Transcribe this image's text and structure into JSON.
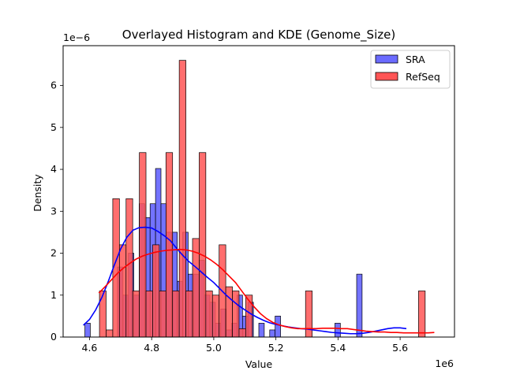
{
  "chart_data": {
    "type": "histogram",
    "title": "Overlayed Histogram and KDE (Genome_Size)",
    "xlabel": "Value",
    "ylabel": "Density",
    "x_exponent_label": "1e6",
    "y_exponent_label": "1e−6",
    "x_scale": 1000000,
    "y_scale": 1e-06,
    "xlim": [
      4.515,
      5.775
    ],
    "ylim": [
      0,
      6.95
    ],
    "x_ticks": [
      4.6,
      4.8,
      5.0,
      5.2,
      5.4,
      5.6
    ],
    "x_tick_labels": [
      "4.6",
      "4.8",
      "5.0",
      "5.2",
      "5.4",
      "5.6"
    ],
    "y_ticks": [
      0,
      1,
      2,
      3,
      4,
      5,
      6
    ],
    "y_tick_labels": [
      "0",
      "1",
      "2",
      "3",
      "4",
      "5",
      "6"
    ],
    "legend_position": "top-right",
    "grid": false,
    "series": [
      {
        "name": "SRA",
        "color": "#0000ff",
        "bar_fill": "#6b6bff",
        "bin_start": 4.585,
        "bin_width": 0.0175,
        "values": [
          0.33,
          0,
          0,
          0,
          0,
          0,
          1.67,
          1.0,
          2.0,
          1.0,
          3.18,
          2.85,
          3.18,
          4.02,
          3.18,
          2.5,
          2.5,
          1.33,
          2.5,
          1.5,
          1.5,
          1.83,
          1.0,
          0.83,
          0.33,
          0.67,
          0.17,
          0.33,
          1.0,
          0.5,
          0.83,
          0,
          0.33,
          0,
          0.17,
          0.5,
          0,
          0,
          0,
          0,
          0,
          0,
          0,
          0,
          0,
          0,
          0.33,
          0,
          0,
          0,
          1.5
        ],
        "kde_x": [
          4.58,
          4.6,
          4.62,
          4.64,
          4.66,
          4.68,
          4.7,
          4.72,
          4.74,
          4.76,
          4.78,
          4.8,
          4.82,
          4.84,
          4.86,
          4.88,
          4.9,
          4.92,
          4.94,
          4.96,
          4.98,
          5.0,
          5.02,
          5.04,
          5.06,
          5.08,
          5.1,
          5.12,
          5.14,
          5.16,
          5.18,
          5.2,
          5.22,
          5.24,
          5.26,
          5.28,
          5.3,
          5.32,
          5.34,
          5.36,
          5.38,
          5.4,
          5.42,
          5.44,
          5.46,
          5.48,
          5.5,
          5.52,
          5.54,
          5.56,
          5.58,
          5.6,
          5.62
        ],
        "kde_y": [
          0.28,
          0.42,
          0.65,
          0.95,
          1.32,
          1.72,
          2.1,
          2.38,
          2.55,
          2.61,
          2.62,
          2.6,
          2.52,
          2.42,
          2.3,
          2.12,
          1.95,
          1.8,
          1.68,
          1.55,
          1.42,
          1.3,
          1.15,
          1.0,
          0.87,
          0.75,
          0.65,
          0.55,
          0.47,
          0.4,
          0.34,
          0.3,
          0.27,
          0.24,
          0.22,
          0.2,
          0.19,
          0.17,
          0.15,
          0.13,
          0.11,
          0.1,
          0.09,
          0.08,
          0.08,
          0.09,
          0.11,
          0.14,
          0.17,
          0.2,
          0.22,
          0.22,
          0.2
        ]
      },
      {
        "name": "RefSeq",
        "color": "#ff0000",
        "bar_fill": "#ff5555",
        "bin_start": 4.632,
        "bin_width": 0.0214,
        "values": [
          1.1,
          0.17,
          3.3,
          2.2,
          3.3,
          1.1,
          4.4,
          1.1,
          2.2,
          1.1,
          4.4,
          1.1,
          6.6,
          1.1,
          2.35,
          4.4,
          1.1,
          1.0,
          2.2,
          1.2,
          1.1,
          0.2,
          1.0,
          0,
          0,
          0,
          0,
          0,
          0,
          0,
          0,
          1.1,
          0,
          0,
          0,
          0,
          0,
          0,
          0,
          0,
          0,
          0,
          0,
          0,
          0,
          0,
          0,
          0,
          1.1
        ],
        "kde_x": [
          4.63,
          4.65,
          4.67,
          4.69,
          4.71,
          4.73,
          4.75,
          4.77,
          4.79,
          4.81,
          4.83,
          4.85,
          4.87,
          4.89,
          4.91,
          4.93,
          4.95,
          4.97,
          4.99,
          5.01,
          5.03,
          5.05,
          5.07,
          5.09,
          5.11,
          5.13,
          5.15,
          5.17,
          5.19,
          5.21,
          5.23,
          5.25,
          5.27,
          5.29,
          5.31,
          5.33,
          5.35,
          5.37,
          5.39,
          5.41,
          5.43,
          5.45,
          5.47,
          5.49,
          5.51,
          5.53,
          5.55,
          5.57,
          5.59,
          5.61,
          5.63,
          5.65,
          5.67,
          5.69,
          5.71
        ],
        "kde_y": [
          1.05,
          1.2,
          1.36,
          1.52,
          1.65,
          1.76,
          1.86,
          1.93,
          1.98,
          2.02,
          2.05,
          2.07,
          2.08,
          2.09,
          2.08,
          2.05,
          2.0,
          1.93,
          1.84,
          1.73,
          1.6,
          1.45,
          1.3,
          1.1,
          0.9,
          0.72,
          0.56,
          0.44,
          0.35,
          0.29,
          0.25,
          0.22,
          0.2,
          0.2,
          0.2,
          0.2,
          0.21,
          0.21,
          0.21,
          0.2,
          0.2,
          0.18,
          0.16,
          0.14,
          0.13,
          0.12,
          0.12,
          0.11,
          0.11,
          0.1,
          0.1,
          0.1,
          0.1,
          0.1,
          0.11
        ]
      }
    ]
  }
}
